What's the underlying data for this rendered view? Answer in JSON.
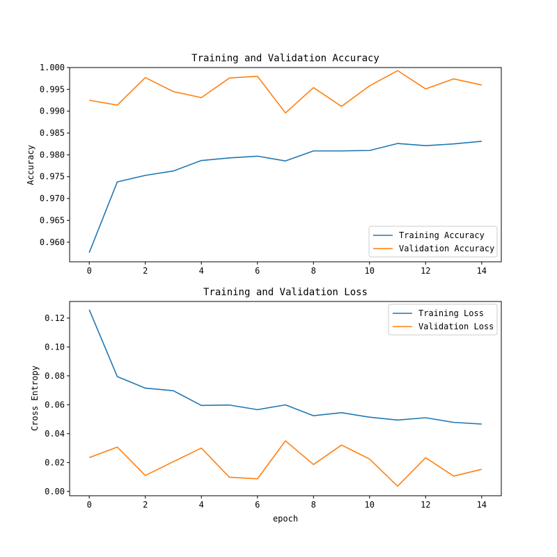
{
  "figure_title": "",
  "chart_data": [
    {
      "type": "line",
      "title": "Training and Validation Accuracy",
      "xlabel": "",
      "ylabel": "Accuracy",
      "xlim": [
        -0.7,
        14.7
      ],
      "ylim": [
        0.9555,
        1.0
      ],
      "xticks": [
        0,
        2,
        4,
        6,
        8,
        10,
        12,
        14
      ],
      "xtick_labels": [
        "0",
        "2",
        "4",
        "6",
        "8",
        "10",
        "12",
        "14"
      ],
      "yticks": [
        0.96,
        0.965,
        0.97,
        0.975,
        0.98,
        0.985,
        0.99,
        0.995,
        1.0
      ],
      "ytick_labels": [
        "0.960",
        "0.965",
        "0.970",
        "0.975",
        "0.980",
        "0.985",
        "0.990",
        "0.995",
        "1.000"
      ],
      "legend_position": "lower-right",
      "grid": false,
      "x": [
        0,
        1,
        2,
        3,
        4,
        5,
        6,
        7,
        8,
        9,
        10,
        11,
        12,
        13,
        14
      ],
      "series": [
        {
          "name": "Training Accuracy",
          "color": "#1f77b4",
          "values": [
            0.9576,
            0.9738,
            0.9753,
            0.9763,
            0.9787,
            0.9793,
            0.9797,
            0.9786,
            0.9809,
            0.9809,
            0.981,
            0.9826,
            0.9821,
            0.9825,
            0.9831
          ]
        },
        {
          "name": "Validation Accuracy",
          "color": "#ff7f0e",
          "values": [
            0.9925,
            0.9914,
            0.9977,
            0.9945,
            0.9931,
            0.9976,
            0.998,
            0.9896,
            0.9954,
            0.9911,
            0.9958,
            0.9993,
            0.9951,
            0.9974,
            0.996
          ]
        }
      ]
    },
    {
      "type": "line",
      "title": "Training and Validation Loss",
      "xlabel": "epoch",
      "ylabel": "Cross Entropy",
      "xlim": [
        -0.7,
        14.7
      ],
      "ylim": [
        -0.003,
        0.1315
      ],
      "xticks": [
        0,
        2,
        4,
        6,
        8,
        10,
        12,
        14
      ],
      "xtick_labels": [
        "0",
        "2",
        "4",
        "6",
        "8",
        "10",
        "12",
        "14"
      ],
      "yticks": [
        0.0,
        0.02,
        0.04,
        0.06,
        0.08,
        0.1,
        0.12
      ],
      "ytick_labels": [
        "0.00",
        "0.02",
        "0.04",
        "0.06",
        "0.08",
        "0.10",
        "0.12"
      ],
      "legend_position": "top-right",
      "grid": false,
      "x": [
        0,
        1,
        2,
        3,
        4,
        5,
        6,
        7,
        8,
        9,
        10,
        11,
        12,
        13,
        14
      ],
      "series": [
        {
          "name": "Training Loss",
          "color": "#1f77b4",
          "values": [
            0.1258,
            0.0795,
            0.0715,
            0.0697,
            0.0595,
            0.0598,
            0.0566,
            0.0599,
            0.0524,
            0.0545,
            0.0514,
            0.0494,
            0.051,
            0.0478,
            0.0466
          ]
        },
        {
          "name": "Validation Loss",
          "color": "#ff7f0e",
          "values": [
            0.0234,
            0.0307,
            0.011,
            0.0206,
            0.03,
            0.0098,
            0.0087,
            0.035,
            0.0186,
            0.0321,
            0.0224,
            0.0036,
            0.0233,
            0.0106,
            0.0153
          ]
        }
      ]
    }
  ]
}
